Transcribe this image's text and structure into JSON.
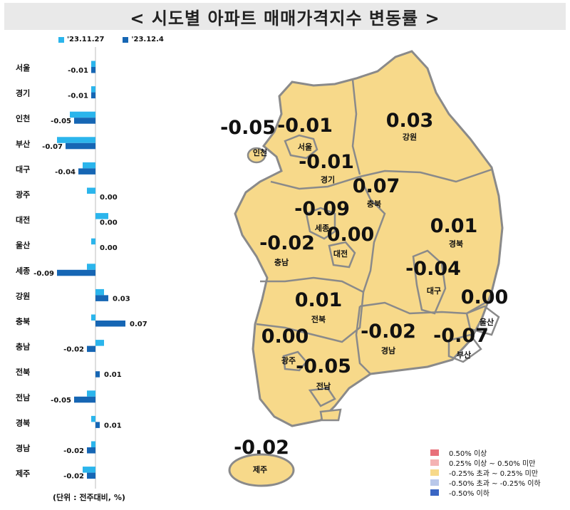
{
  "title": "< 시도별 아파트 매매가격지수 변동률 >",
  "legend": [
    {
      "label": "'23.11.27",
      "color": "#2bb5ec"
    },
    {
      "label": "'23.12.4",
      "color": "#1666b4"
    }
  ],
  "unit_note": "(단위 : 전주대비, %)",
  "chart_data": {
    "type": "bar",
    "orientation": "horizontal",
    "categories": [
      "서울",
      "경기",
      "인천",
      "부산",
      "대구",
      "광주",
      "대전",
      "울산",
      "세종",
      "강원",
      "충북",
      "충남",
      "전북",
      "전남",
      "경북",
      "경남",
      "제주"
    ],
    "series": [
      {
        "name": "'23.11.27",
        "color": "#2bb5ec",
        "values": [
          -0.01,
          -0.01,
          -0.06,
          -0.09,
          -0.03,
          -0.02,
          0.03,
          -0.01,
          -0.02,
          0.02,
          -0.01,
          0.02,
          0.0,
          -0.02,
          -0.01,
          -0.01,
          -0.03
        ]
      },
      {
        "name": "'23.12.4",
        "color": "#1666b4",
        "values": [
          -0.01,
          -0.01,
          -0.05,
          -0.07,
          -0.04,
          0.0,
          0.0,
          0.0,
          -0.09,
          0.03,
          0.07,
          -0.02,
          0.01,
          -0.05,
          0.01,
          -0.02,
          -0.02
        ]
      }
    ],
    "data_labels": [
      "-0.01",
      "-0.01",
      "-0.05",
      "-0.07",
      "-0.04",
      "0.00",
      "0.00",
      "0.00",
      "-0.09",
      "0.03",
      "0.07",
      "-0.02",
      "0.01",
      "-0.05",
      "0.01",
      "-0.02",
      "-0.02"
    ]
  },
  "map": {
    "regions": [
      {
        "name": "서울",
        "value": "-0.01"
      },
      {
        "name": "인천",
        "value": "-0.05"
      },
      {
        "name": "경기",
        "value": "-0.01"
      },
      {
        "name": "강원",
        "value": "0.03"
      },
      {
        "name": "충북",
        "value": "0.07"
      },
      {
        "name": "세종",
        "value": "-0.09"
      },
      {
        "name": "대전",
        "value": "0.00"
      },
      {
        "name": "충남",
        "value": "-0.02"
      },
      {
        "name": "경북",
        "value": "0.01"
      },
      {
        "name": "대구",
        "value": "-0.04"
      },
      {
        "name": "울산",
        "value": "0.00"
      },
      {
        "name": "전북",
        "value": "0.01"
      },
      {
        "name": "광주",
        "value": "0.00"
      },
      {
        "name": "경남",
        "value": "-0.02"
      },
      {
        "name": "부산",
        "value": "-0.07"
      },
      {
        "name": "전남",
        "value": "-0.05"
      },
      {
        "name": "제주",
        "value": "-0.02"
      }
    ],
    "fill_color": "#f7d98a",
    "border_color": "#8a8a8a"
  },
  "map_legend": [
    {
      "label": "0.50% 이상",
      "color": "#e8707a"
    },
    {
      "label": "0.25% 이상 ~ 0.50% 미만",
      "color": "#f4b3b3"
    },
    {
      "label": "-0.25% 초과 ~ 0.25% 미만",
      "color": "#f7d98a"
    },
    {
      "label": "-0.50% 초과 ~ -0.25% 이하",
      "color": "#b9c8ea"
    },
    {
      "label": "-0.50% 이하",
      "color": "#3a66c4"
    }
  ]
}
